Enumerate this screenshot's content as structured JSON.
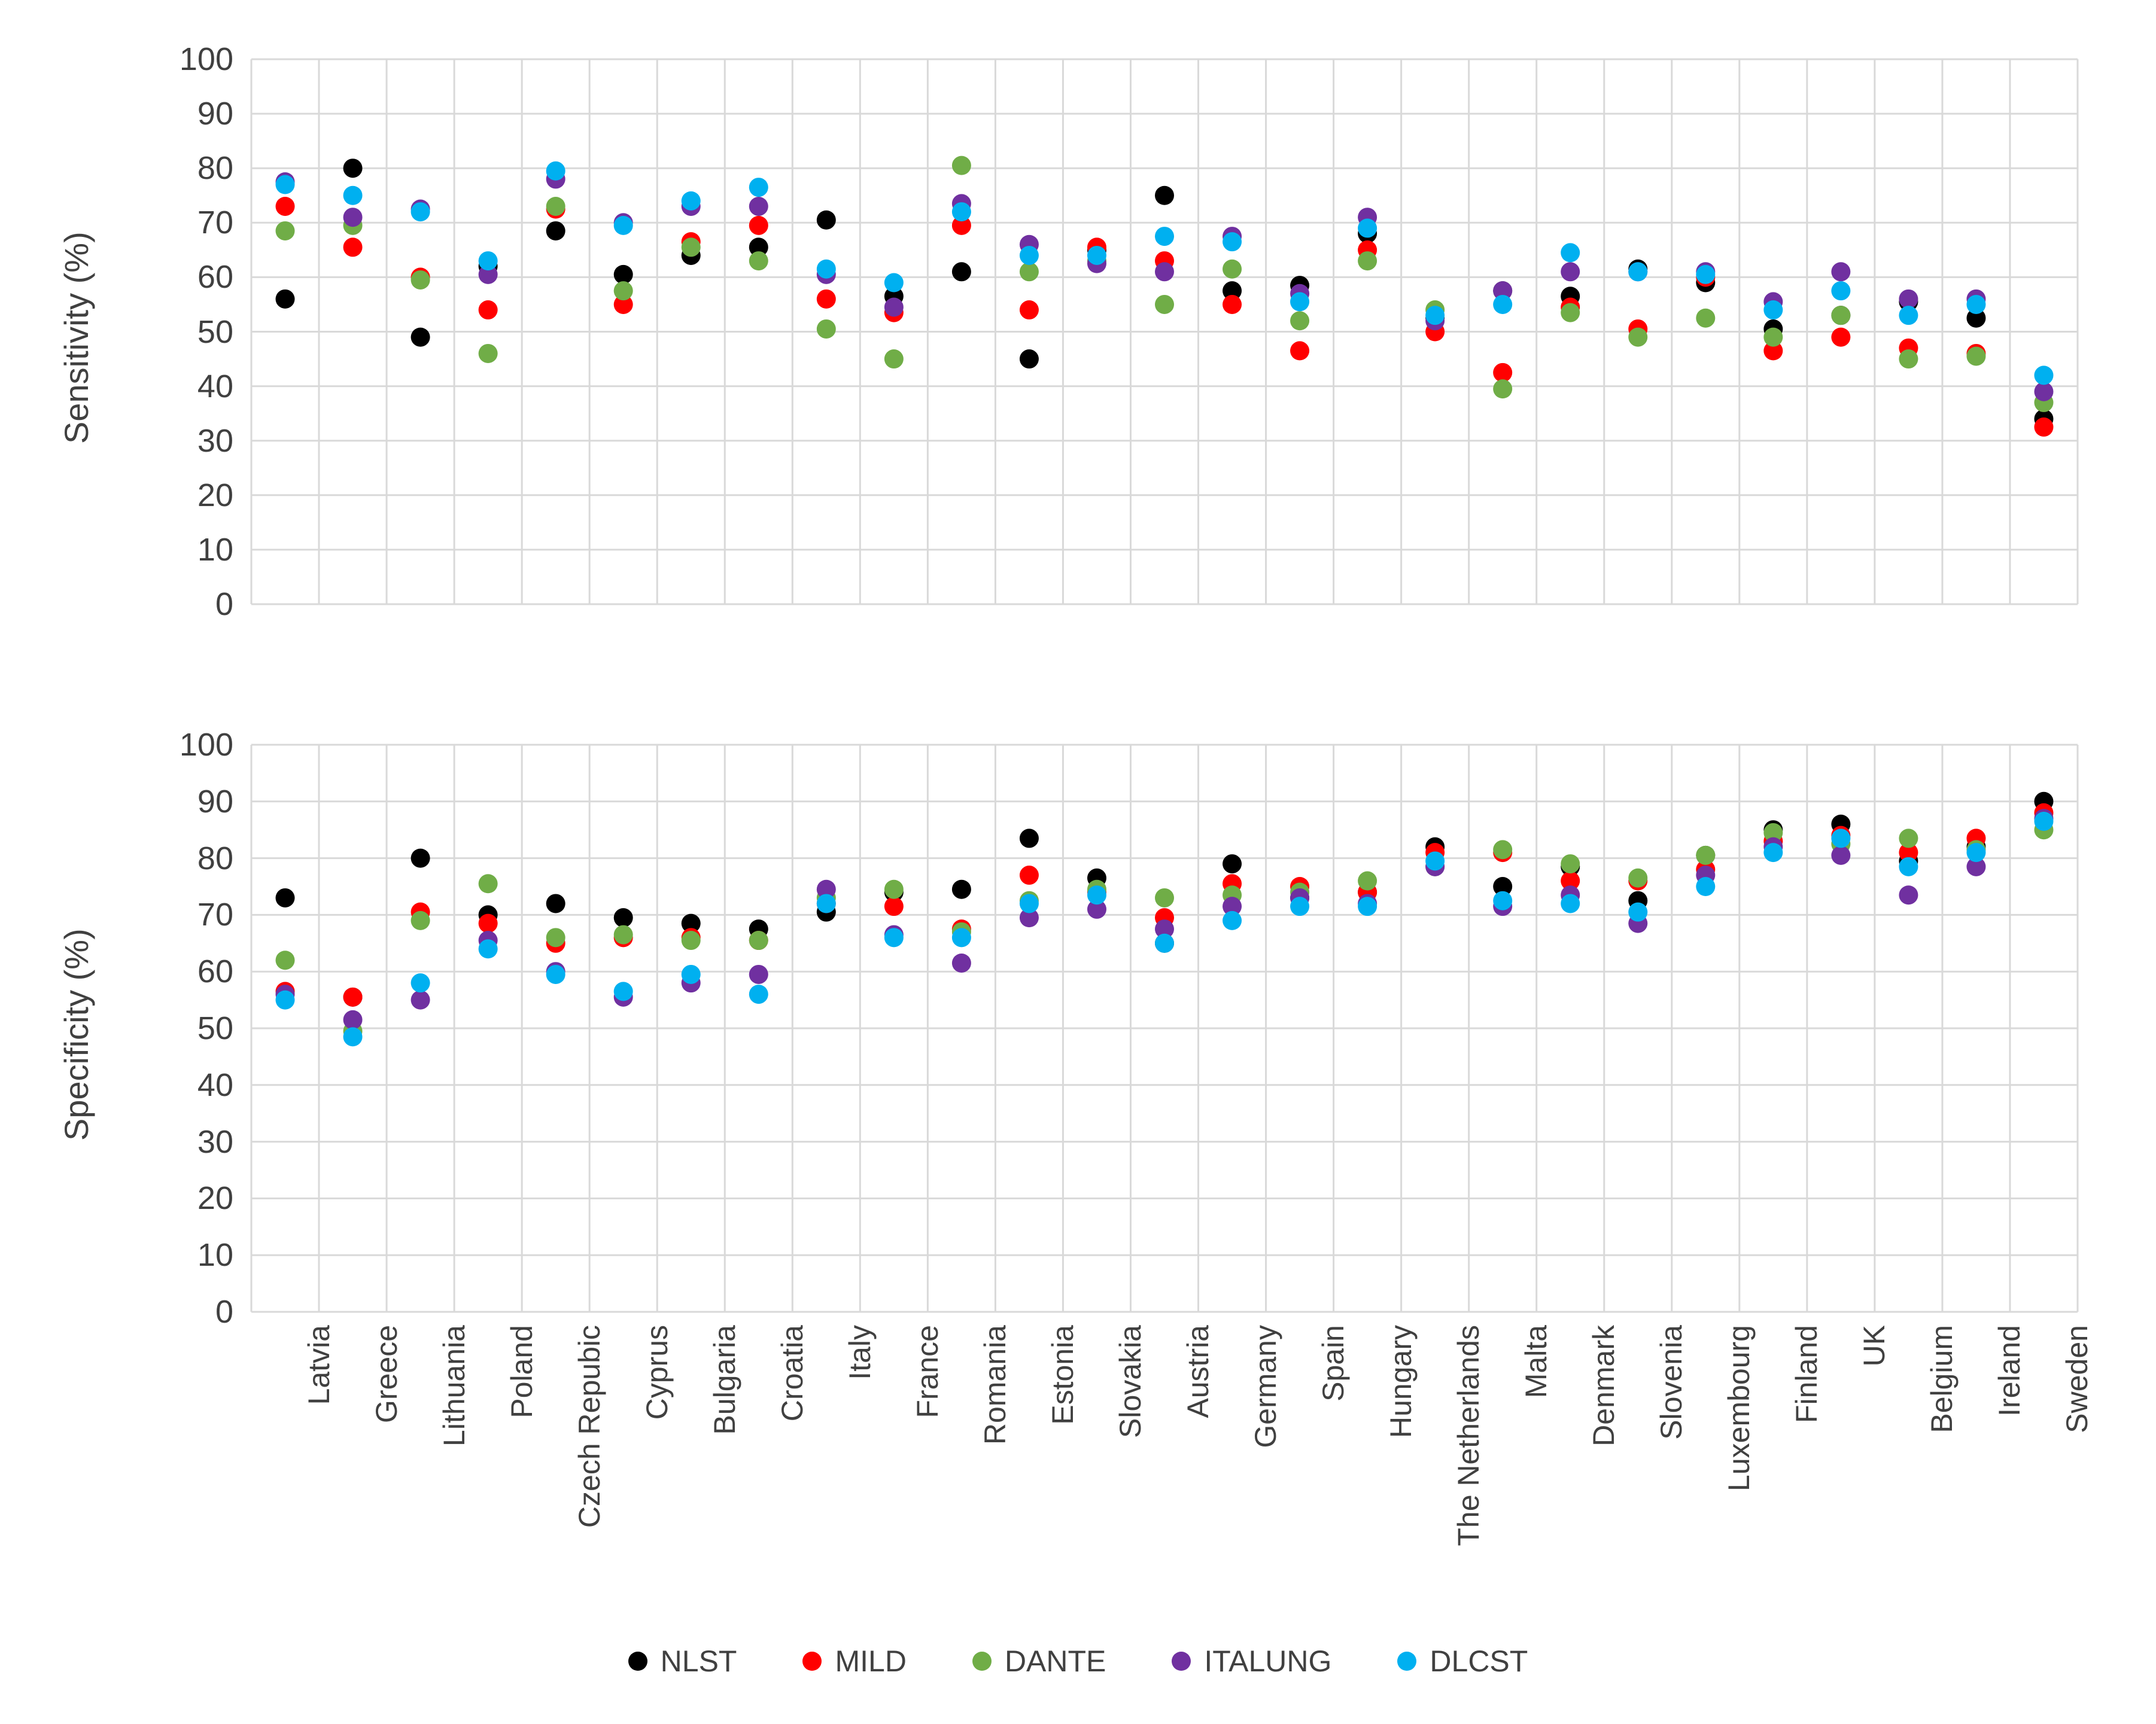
{
  "page": {
    "background": "#ffffff"
  },
  "axis": {
    "grid_color": "#d9d9d9",
    "tick_color": "#404040"
  },
  "legend": {
    "items": [
      {
        "label": "NLST",
        "color": "#000000"
      },
      {
        "label": "MILD",
        "color": "#ff0000"
      },
      {
        "label": "DANTE",
        "color": "#70ad47"
      },
      {
        "label": "ITALUNG",
        "color": "#7030a0"
      },
      {
        "label": "DLCST",
        "color": "#00b0f0"
      }
    ]
  },
  "chart_data": [
    {
      "type": "scatter",
      "title": "",
      "xlabel": "",
      "ylabel": "Sensitivity (%)",
      "ylim": [
        0,
        100
      ],
      "ytick_step": 10,
      "grid": true,
      "legend_position": "bottom-shared",
      "categories": [
        "Latvia",
        "Greece",
        "Lithuania",
        "Poland",
        "Czech Repubic",
        "Cyprus",
        "Bulgaria",
        "Croatia",
        "Italy",
        "France",
        "Romania",
        "Estonia",
        "Slovakia",
        "Austria",
        "Germany",
        "Spain",
        "Hungary",
        "The Netherlands",
        "Malta",
        "Denmark",
        "Slovenia",
        "Luxembourg",
        "Finland",
        "UK",
        "Belgium",
        "Ireland",
        "Sweden"
      ],
      "series": [
        {
          "name": "NLST",
          "color": "#000000",
          "values": [
            56,
            80,
            49,
            62,
            68.5,
            60.5,
            64,
            65.5,
            70.5,
            56.5,
            61,
            45,
            65,
            75,
            57.5,
            58.5,
            68,
            52.5,
            57.5,
            56.5,
            61.5,
            59,
            50.5,
            53,
            55.5,
            52.5,
            34
          ]
        },
        {
          "name": "MILD",
          "color": "#ff0000",
          "values": [
            73,
            65.5,
            60,
            54,
            72.5,
            55,
            66.5,
            69.5,
            56,
            53.5,
            69.5,
            54,
            65.5,
            63,
            55,
            46.5,
            65,
            50,
            42.5,
            54.5,
            50.5,
            60,
            46.5,
            49,
            47,
            46,
            32.5
          ]
        },
        {
          "name": "DANTE",
          "color": "#70ad47",
          "values": [
            68.5,
            69.5,
            59.5,
            46,
            73,
            57.5,
            65.5,
            63,
            50.5,
            45,
            80.5,
            61,
            63,
            55,
            61.5,
            52,
            63,
            54,
            39.5,
            53.5,
            49,
            52.5,
            49,
            53,
            45,
            45.5,
            37
          ]
        },
        {
          "name": "ITALUNG",
          "color": "#7030a0",
          "values": [
            77.5,
            71,
            72.5,
            60.5,
            78,
            70,
            73,
            73,
            60.5,
            54.5,
            73.5,
            66,
            62.5,
            61,
            67.5,
            57,
            71,
            52,
            57.5,
            61,
            61,
            61,
            55.5,
            61,
            56,
            56,
            39
          ]
        },
        {
          "name": "DLCST",
          "color": "#00b0f0",
          "values": [
            77,
            75,
            72,
            63,
            79.5,
            69.5,
            74,
            76.5,
            61.5,
            59,
            72,
            64,
            64,
            67.5,
            66.5,
            55.5,
            69,
            53,
            55,
            64.5,
            61,
            60.5,
            54,
            57.5,
            53,
            55,
            42
          ]
        }
      ]
    },
    {
      "type": "scatter",
      "title": "",
      "xlabel": "",
      "ylabel": "Specificity (%)",
      "ylim": [
        0,
        100
      ],
      "ytick_step": 10,
      "grid": true,
      "legend_position": "bottom-shared",
      "categories": [
        "Latvia",
        "Greece",
        "Lithuania",
        "Poland",
        "Czech Repubic",
        "Cyprus",
        "Bulgaria",
        "Croatia",
        "Italy",
        "France",
        "Romania",
        "Estonia",
        "Slovakia",
        "Austria",
        "Germany",
        "Spain",
        "Hungary",
        "The Netherlands",
        "Malta",
        "Denmark",
        "Slovenia",
        "Luxembourg",
        "Finland",
        "UK",
        "Belgium",
        "Ireland",
        "Sweden"
      ],
      "series": [
        {
          "name": "NLST",
          "color": "#000000",
          "values": [
            73,
            55.5,
            80,
            70,
            72,
            69.5,
            68.5,
            67.5,
            70.5,
            74,
            74.5,
            83.5,
            76.5,
            65,
            79,
            73,
            74,
            82,
            75,
            78.5,
            72.5,
            80.5,
            85,
            86,
            79.5,
            82,
            90
          ]
        },
        {
          "name": "MILD",
          "color": "#ff0000",
          "values": [
            56.5,
            55.5,
            70.5,
            68.5,
            65,
            66,
            66,
            65.5,
            72,
            71.5,
            67.5,
            77,
            74,
            69.5,
            75.5,
            75,
            74,
            81,
            81,
            76,
            76,
            78,
            83,
            84,
            81,
            83.5,
            88
          ]
        },
        {
          "name": "DANTE",
          "color": "#70ad47",
          "values": [
            62,
            49.5,
            69,
            75.5,
            66,
            66.5,
            65.5,
            65.5,
            73,
            74.5,
            67,
            72.5,
            74.5,
            73,
            73.5,
            74,
            76,
            78.5,
            81.5,
            79,
            76.5,
            80.5,
            84.5,
            82.5,
            83.5,
            81.5,
            85
          ]
        },
        {
          "name": "ITALUNG",
          "color": "#7030a0",
          "values": [
            56,
            51.5,
            55,
            65.5,
            60,
            55.5,
            58,
            59.5,
            74.5,
            66.5,
            61.5,
            69.5,
            71,
            67.5,
            71.5,
            73,
            72,
            78.5,
            71.5,
            73.5,
            68.5,
            77,
            82,
            80.5,
            73.5,
            78.5,
            87
          ]
        },
        {
          "name": "DLCST",
          "color": "#00b0f0",
          "values": [
            55,
            48.5,
            58,
            64,
            59.5,
            56.5,
            59.5,
            56,
            72,
            66,
            66,
            72,
            73.5,
            65,
            69,
            71.5,
            71.5,
            79.5,
            72.5,
            72,
            70.5,
            75,
            81,
            83.5,
            78.5,
            81,
            86.5
          ]
        }
      ]
    }
  ]
}
